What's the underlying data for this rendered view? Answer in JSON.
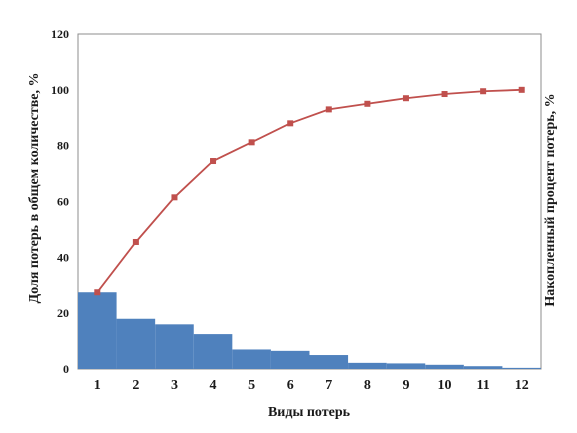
{
  "chart_data": {
    "type": "bar",
    "xlabel": "Виды потерь",
    "ylabel": "Доля потерь в общем количестве, %",
    "ylabel_right": "Накопленный процент потерь, %",
    "ylim": [
      0,
      120
    ],
    "yticks": [
      0,
      20,
      40,
      60,
      80,
      100,
      120
    ],
    "categories": [
      "1",
      "2",
      "3",
      "4",
      "5",
      "6",
      "7",
      "8",
      "9",
      "10",
      "11",
      "12"
    ],
    "series": [
      {
        "type": "bar",
        "values": [
          27.5,
          18,
          16,
          12.5,
          7,
          6.5,
          5,
          2.2,
          2,
          1.5,
          1,
          0.4
        ]
      },
      {
        "type": "line",
        "values": [
          27.5,
          45.5,
          61.5,
          74.5,
          81.2,
          88,
          93,
          95,
          97,
          98.5,
          99.5,
          100
        ]
      }
    ],
    "colors": {
      "bars": "#4f81bd",
      "line": "#c0504d",
      "frame": "#8c8c8c"
    },
    "grid": false,
    "legend": "none"
  }
}
